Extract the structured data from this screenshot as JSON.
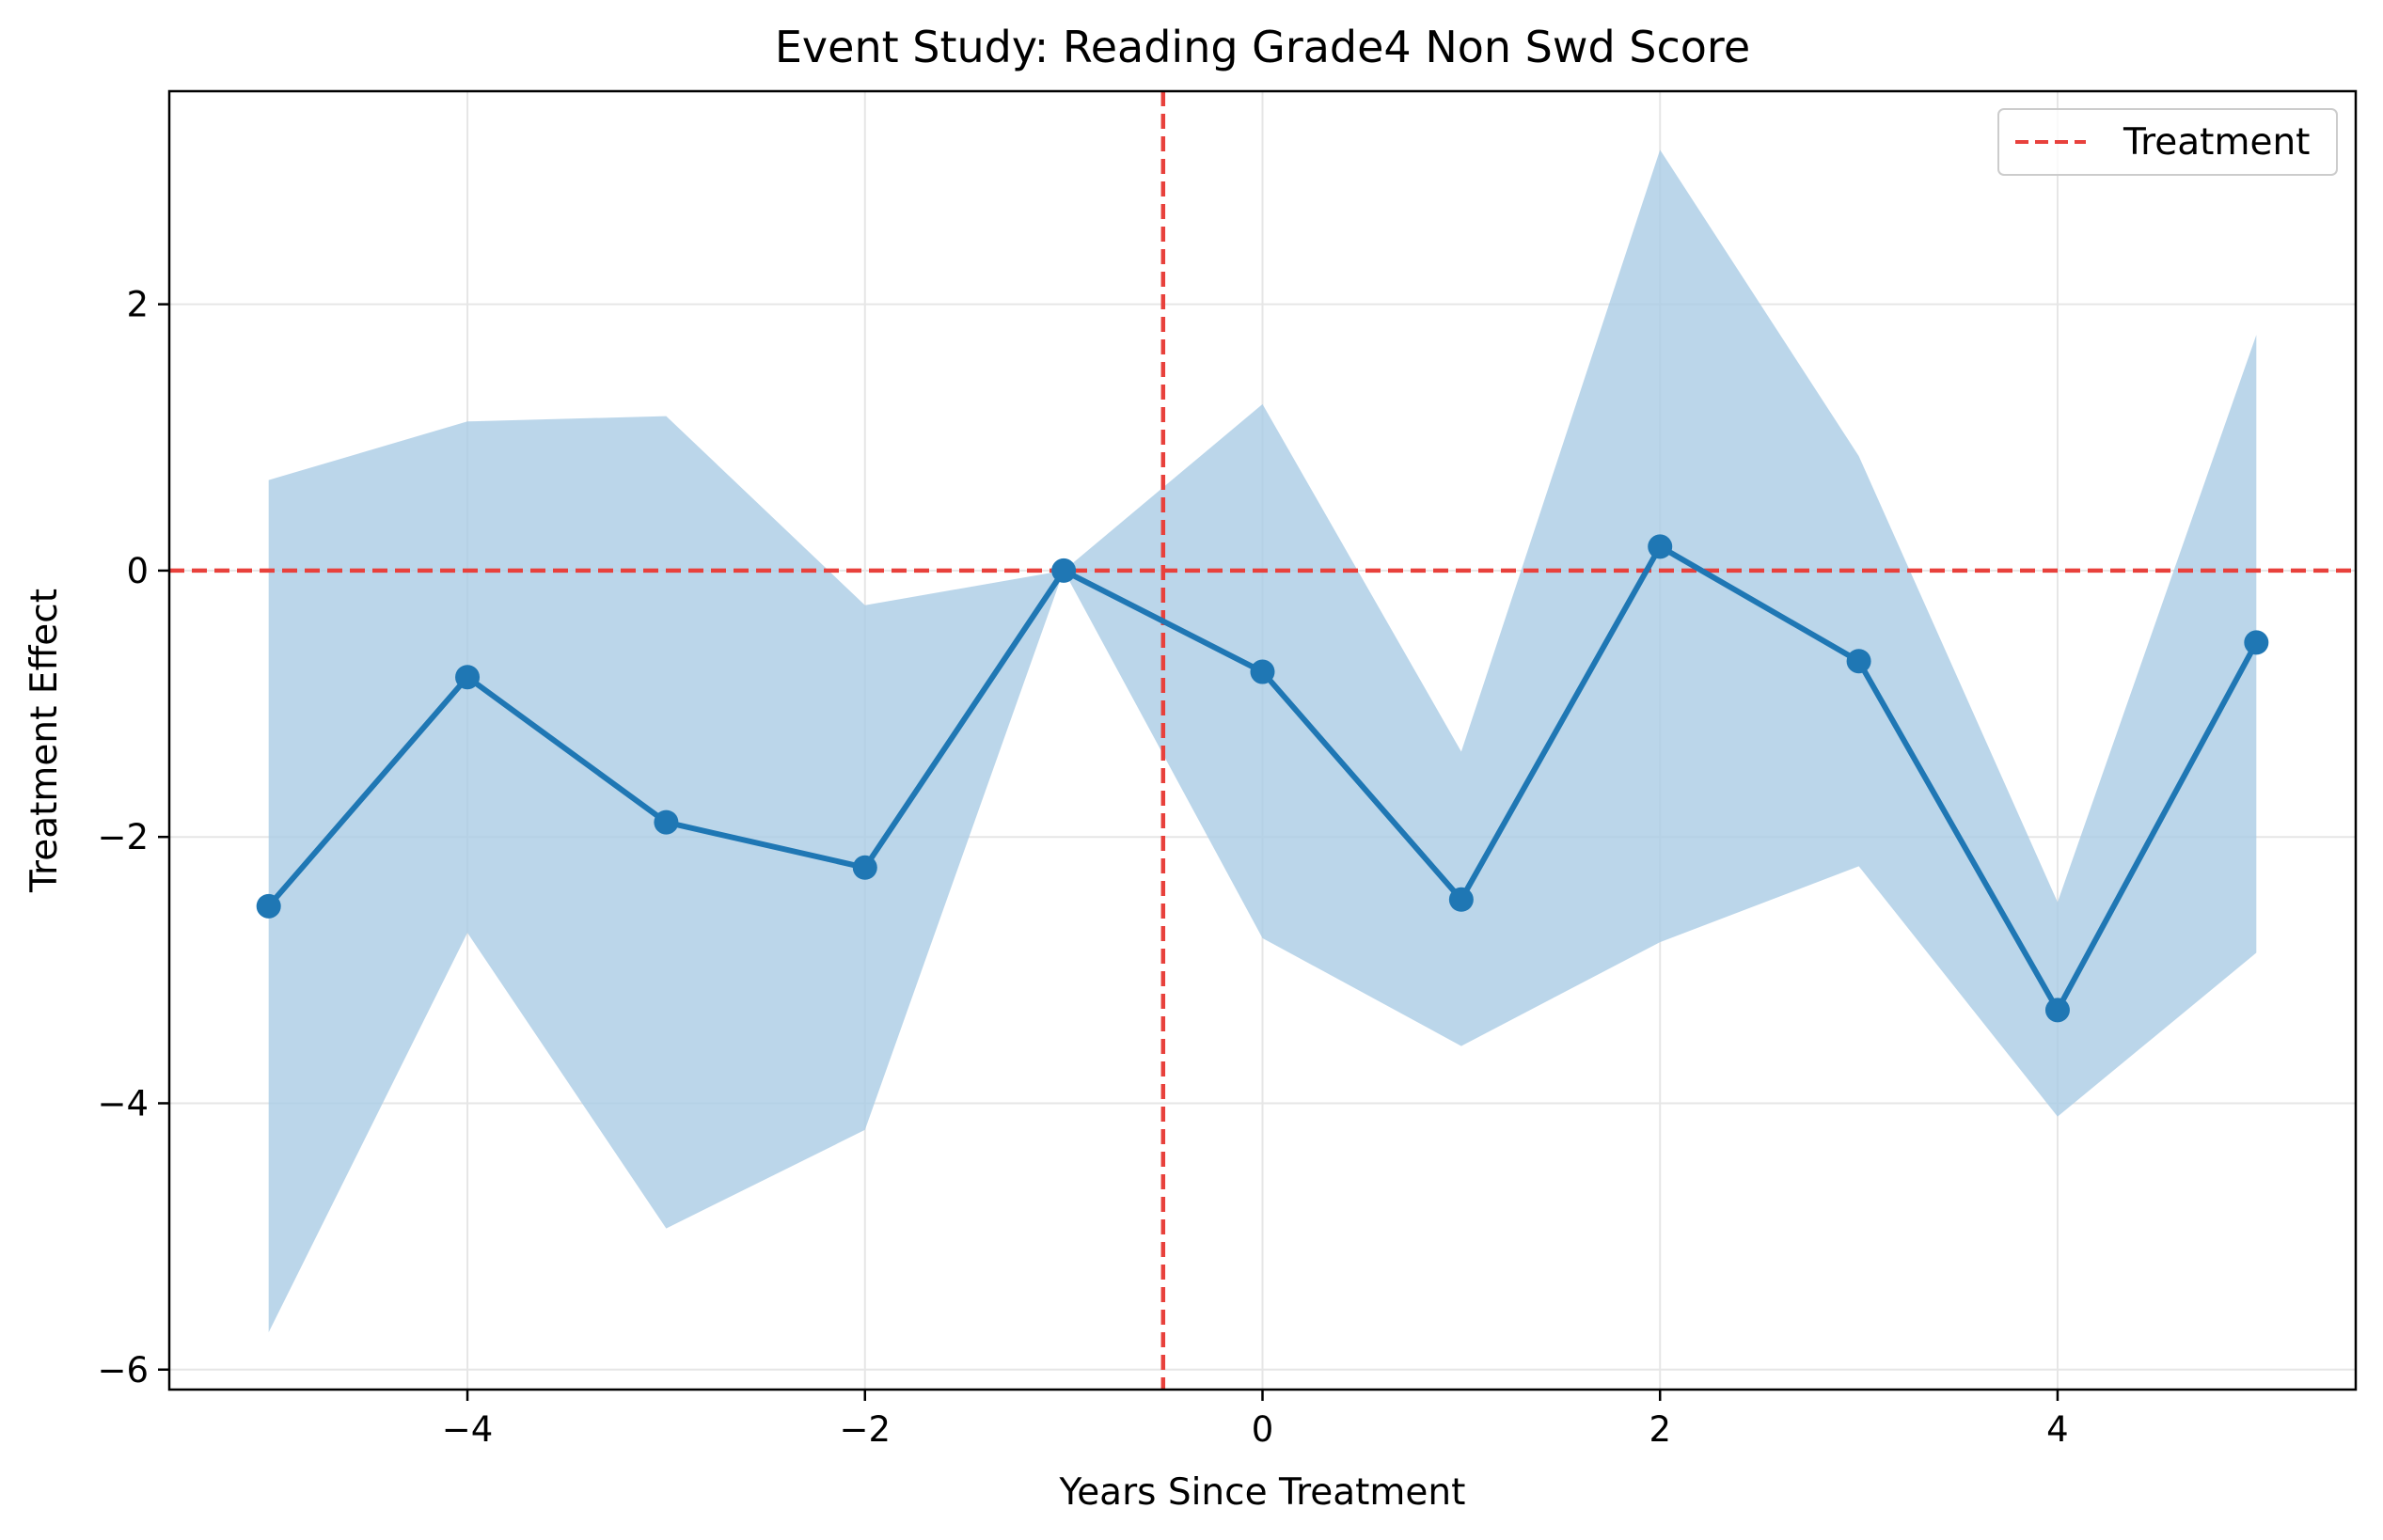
{
  "chart_data": {
    "type": "line",
    "title": "Event Study: Reading Grade4 Non Swd Score",
    "xlabel": "Years Since Treatment",
    "ylabel": "Treatment Effect",
    "xlim": [
      -5.5,
      5.5
    ],
    "ylim": [
      -6.15,
      3.6
    ],
    "xticks": [
      -4,
      -2,
      0,
      2,
      4
    ],
    "yticks": [
      -6,
      -4,
      -2,
      0,
      2
    ],
    "grid": true,
    "legend_position": "top-right",
    "series": [
      {
        "x": [
          -5,
          -4,
          -3,
          -2,
          -1,
          0,
          1,
          2,
          3,
          4,
          5
        ],
        "values": [
          -2.52,
          -0.8,
          -1.89,
          -2.23,
          0.0,
          -0.76,
          -2.47,
          0.18,
          -0.68,
          -3.3,
          -0.54
        ],
        "ci_lower": [
          -5.72,
          -2.72,
          -4.94,
          -4.2,
          0.0,
          -2.76,
          -3.57,
          -2.79,
          -2.22,
          -4.1,
          -2.87
        ],
        "ci_upper": [
          0.68,
          1.12,
          1.16,
          -0.26,
          0.0,
          1.25,
          -1.36,
          3.16,
          0.86,
          -2.49,
          1.77
        ],
        "color": "#1f77b4",
        "band_color": "#a8cbe4"
      }
    ],
    "reference_lines": [
      {
        "label": "Treatment",
        "orientation": "vertical",
        "value": -0.5,
        "color": "#e8413c",
        "style": "dashed"
      },
      {
        "orientation": "horizontal",
        "value": 0,
        "color": "#e8413c",
        "style": "dashed"
      }
    ],
    "legend": [
      {
        "label": "Treatment",
        "color": "#e8413c",
        "style": "dashed"
      }
    ]
  }
}
